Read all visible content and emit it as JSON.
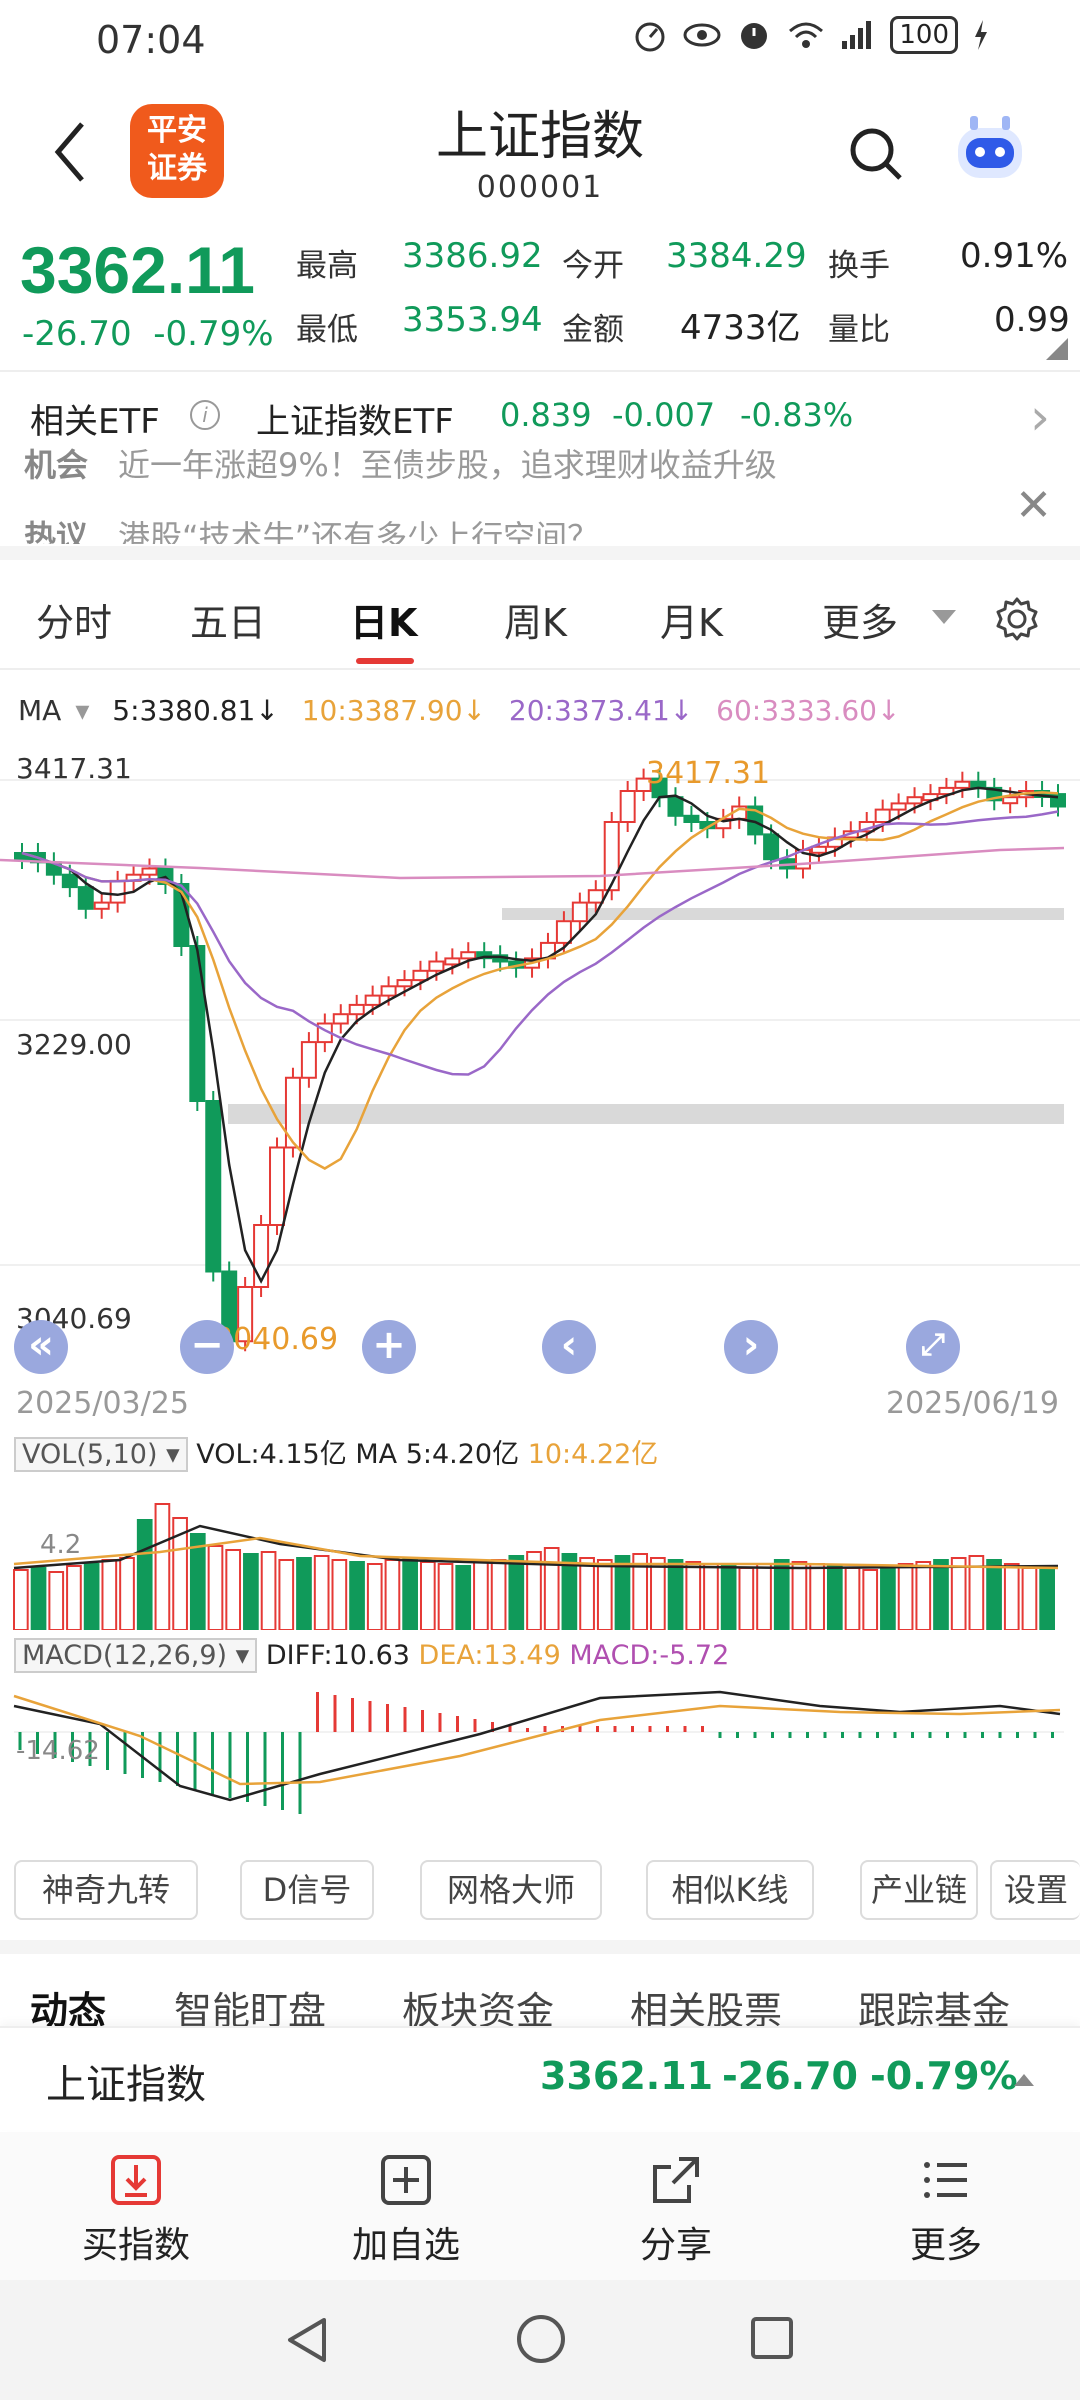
{
  "status_bar": {
    "time": "07:04",
    "battery": "100"
  },
  "header": {
    "title": "上证指数",
    "code": "000001",
    "logo_line1": "平安",
    "logo_line2": "证券"
  },
  "quote": {
    "price": "3362.11",
    "change": "-26.70",
    "change_pct": "-0.79%",
    "high_label": "最高",
    "high": "3386.92",
    "low_label": "最低",
    "low": "3353.94",
    "open_label": "今开",
    "open": "3384.29",
    "amount_label": "金额",
    "amount": "4733亿",
    "turnover_label": "换手",
    "turnover": "0.91%",
    "vol_ratio_label": "量比",
    "vol_ratio": "0.99"
  },
  "etf": {
    "label": "相关ETF",
    "name": "上证指数ETF",
    "price": "0.839",
    "change": "-0.007",
    "change_pct": "-0.83%"
  },
  "news": [
    {
      "tag": "机会",
      "text": "近一年涨超9%！至债步股，追求理财收益升级"
    },
    {
      "tag": "热议",
      "text": "港股“技术牛”还有多少上行空间？"
    }
  ],
  "period_tabs": [
    "分时",
    "五日",
    "日K",
    "周K",
    "月K",
    "更多"
  ],
  "active_tab": "日K",
  "ma_legend": {
    "label": "MA",
    "ma5": "5:3380.81↓",
    "ma10": "10:3387.90↓",
    "ma20": "20:3373.41↓",
    "ma60": "60:3333.60↓"
  },
  "kline": {
    "y_high_label": "3417.31",
    "y_mid_label": "3229.00",
    "y_low_label": "3040.69",
    "high_mark": "3417.31",
    "low_mark": "3040.69",
    "date_start": "2025/03/25",
    "date_end": "2025/06/19"
  },
  "vol_legend": {
    "box": "VOL(5,10)",
    "vol": "VOL:4.15亿",
    "ma5": "MA 5:4.20亿",
    "ma10": "10:4.22亿",
    "axis": "4.2"
  },
  "macd_legend": {
    "box": "MACD(12,26,9)",
    "diff": "DIFF:10.63",
    "dea": "DEA:13.49",
    "macd": "MACD:-5.72",
    "axis": "-14.62"
  },
  "tools": [
    "神奇九转",
    "D信号",
    "网格大师",
    "相似K线",
    "产业链",
    "设置"
  ],
  "sub_tabs": [
    "动态",
    "智能盯盘",
    "板块资金",
    "相关股票",
    "跟踪基金"
  ],
  "bottom_quote": {
    "name": "上证指数",
    "price": "3362.11",
    "change": "-26.70",
    "change_pct": "-0.79%"
  },
  "actions": [
    "买指数",
    "加自选",
    "分享",
    "更多"
  ],
  "colors": {
    "up": "#e53935",
    "down": "#109a5a",
    "ma5": "#222222",
    "ma10": "#e8a33a",
    "ma20": "#9a68c8",
    "ma60": "#d98cc0"
  }
}
